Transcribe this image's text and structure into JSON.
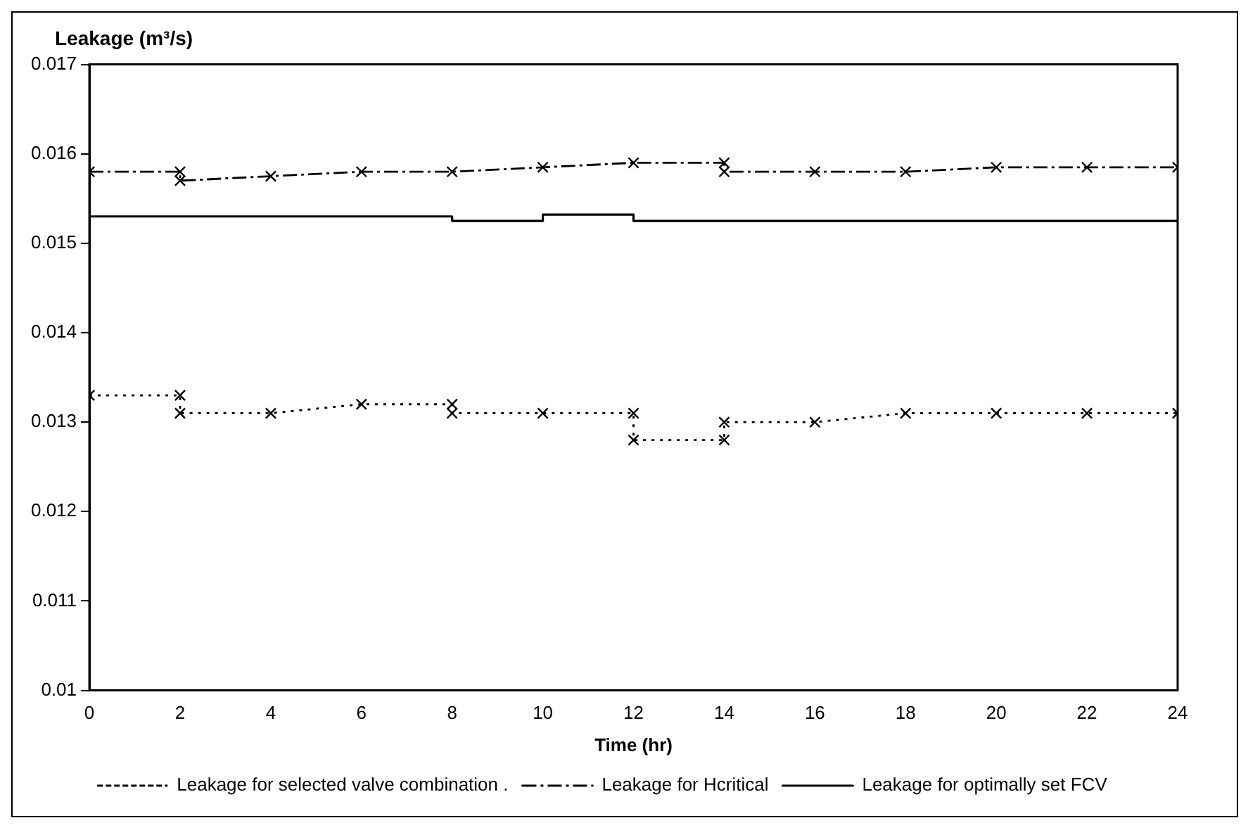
{
  "chart_data": {
    "type": "line",
    "ylabel": "Leakage (m³/s)",
    "xlabel": "Time (hr)",
    "series": [
      {
        "name": "Leakage for selected valve combination .",
        "color": "#000000",
        "marker": "cross",
        "line_style": "dotted",
        "x": [
          0,
          2,
          2,
          4,
          6,
          8,
          8,
          10,
          12,
          12,
          14,
          14,
          16,
          18,
          20,
          22,
          24
        ],
        "values": [
          0.0133,
          0.0133,
          0.0131,
          0.0131,
          0.0132,
          0.0132,
          0.0131,
          0.0131,
          0.0131,
          0.0128,
          0.0128,
          0.013,
          0.013,
          0.0131,
          0.0131,
          0.0131,
          0.0131
        ]
      },
      {
        "name": "Leakage for Hcritical",
        "color": "#000000",
        "marker": "cross",
        "line_style": "dashed",
        "x": [
          0,
          2,
          2,
          4,
          6,
          8,
          10,
          12,
          14,
          14,
          16,
          18,
          20,
          22,
          24
        ],
        "values": [
          0.0158,
          0.0158,
          0.0157,
          0.01575,
          0.0158,
          0.0158,
          0.01585,
          0.0159,
          0.0159,
          0.0158,
          0.0158,
          0.0158,
          0.01585,
          0.01585,
          0.01585
        ]
      },
      {
        "name": "Leakage for optimally set FCV",
        "color": "#000000",
        "marker": "none",
        "line_style": "solid",
        "x": [
          0,
          8,
          8,
          10,
          10,
          12,
          12,
          24
        ],
        "values": [
          0.0153,
          0.0153,
          0.01525,
          0.01525,
          0.01532,
          0.01532,
          0.01525,
          0.01525
        ]
      }
    ],
    "xlim": [
      0,
      24
    ],
    "xticks": [
      0,
      2,
      4,
      6,
      8,
      10,
      12,
      14,
      16,
      18,
      20,
      22,
      24
    ],
    "ylim": [
      0.01,
      0.017
    ],
    "yticks": [
      0.01,
      0.011,
      0.012,
      0.013,
      0.014,
      0.015,
      0.016,
      0.017
    ],
    "grid": false,
    "legend": "bottom"
  }
}
